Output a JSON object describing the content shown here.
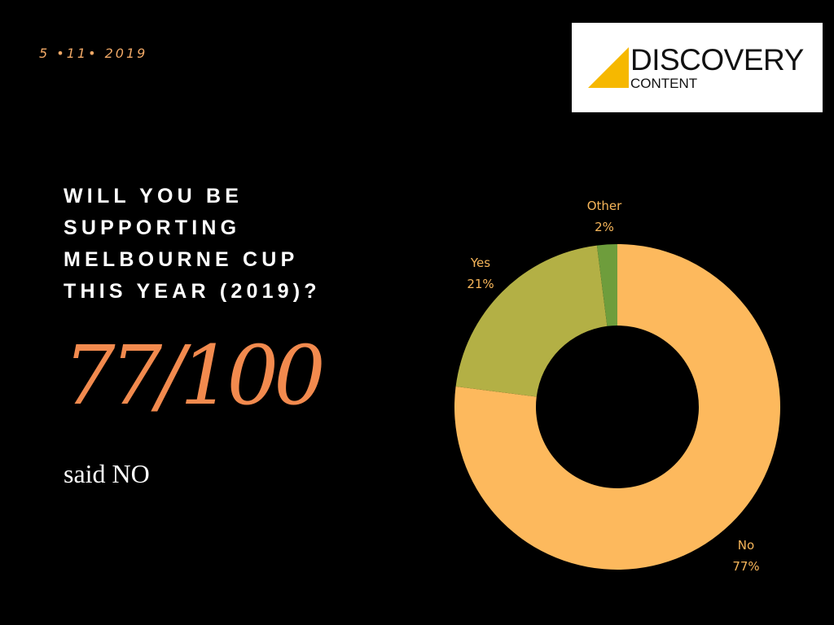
{
  "date": "5 •11• 2019",
  "logo": {
    "line1": "DISCOVERY",
    "line2": "CONTENT",
    "mark_color": "#f6b800"
  },
  "question": {
    "lines": [
      "WILL YOU BE",
      "SUPPORTING",
      "MELBOURNE CUP",
      "THIS YEAR (2019)?"
    ]
  },
  "stat": "77/100",
  "caption": "said NO",
  "colors": {
    "background": "#000000",
    "accent": "#f28a4e",
    "date": "#f0a866",
    "label": "#f7b65a"
  },
  "chart_data": {
    "type": "pie",
    "style": "donut",
    "start_angle_deg": 0,
    "direction": "clockwise",
    "slices": [
      {
        "name": "No",
        "value": 77,
        "label": "No",
        "pct_label": "77%",
        "color": "#fdb95d"
      },
      {
        "name": "Yes",
        "value": 21,
        "label": "Yes",
        "pct_label": "21%",
        "color": "#b3b045"
      },
      {
        "name": "Other",
        "value": 2,
        "label": "Other",
        "pct_label": "2%",
        "color": "#6e9d3c"
      }
    ],
    "legend": "none"
  }
}
